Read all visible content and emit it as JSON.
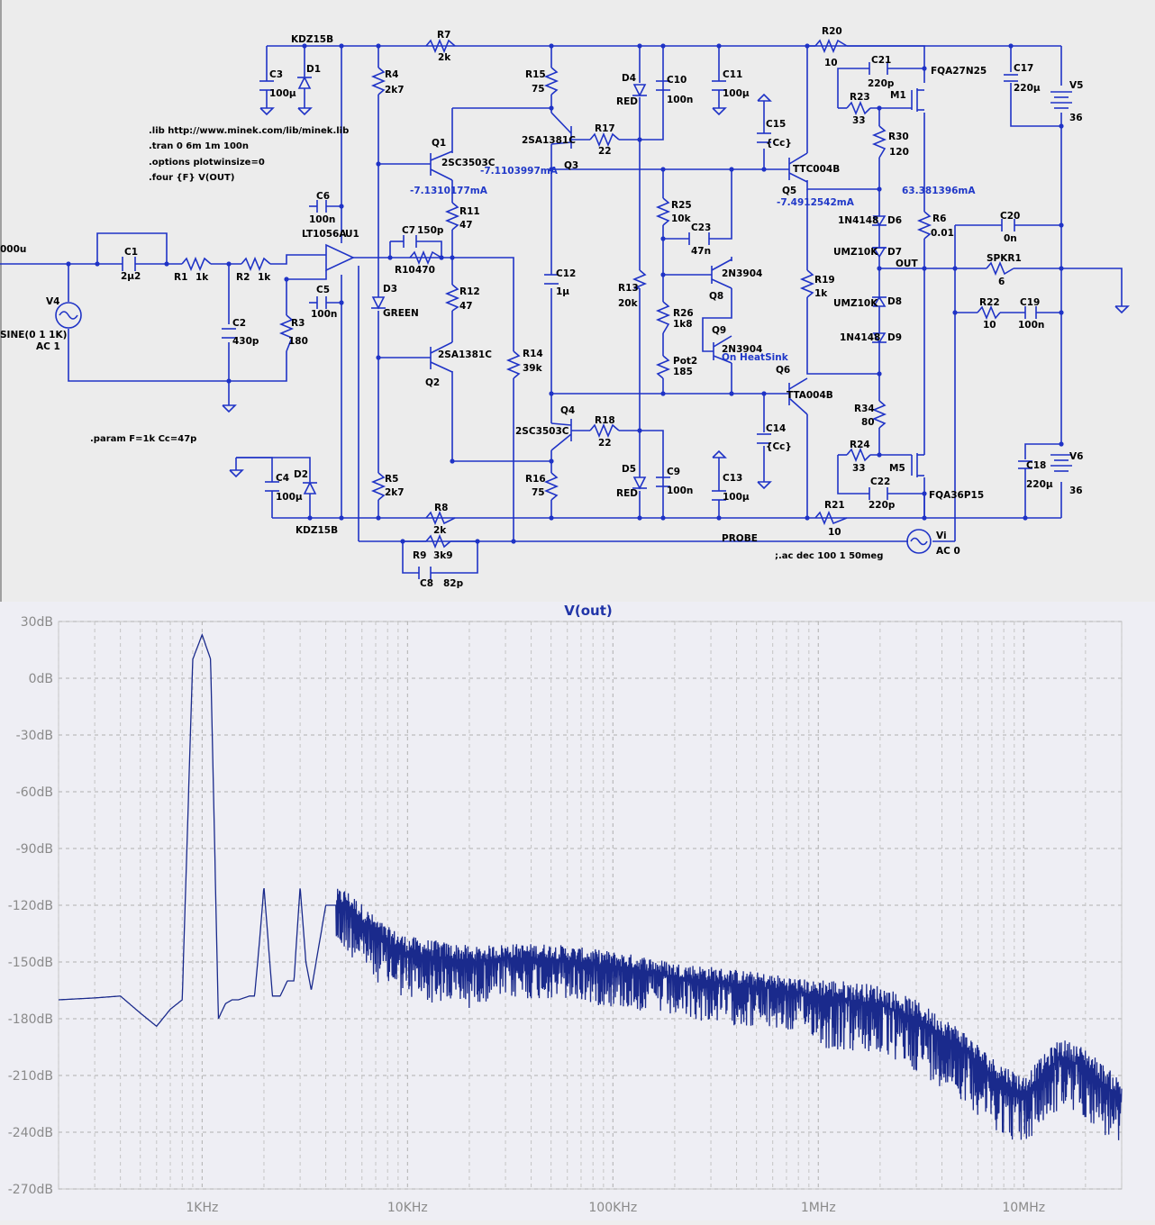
{
  "schematic": {
    "directives": [
      ".lib http://www.minek.com/lib/minek.lib",
      ".tran 0 6m 1m 100n",
      ".options plotwinsize=0",
      ".four {F} V(OUT)",
      ".param F=1k Cc=47p",
      ";.ac dec 100 1 50meg"
    ],
    "labels": {
      "kdz_top": "KDZ15B",
      "kdz_bot": "KDZ15B",
      "r7": "R7",
      "r7v": "2k",
      "r20": "R20",
      "r20v": "10",
      "c3": "C3",
      "c3v": "100µ",
      "d1": "D1",
      "r4": "R4",
      "r4v": "2k7",
      "r15": "R15",
      "r15v": "75",
      "d4": "D4",
      "d4v": "RED",
      "c10": "C10",
      "c10v": "100n",
      "c11": "C11",
      "c11v": "100µ",
      "c21": "C21",
      "c21v": "220p",
      "m1": "M1",
      "m1v": "FQA27N25",
      "c17": "C17",
      "c17v": "220µ",
      "v5": "V5",
      "v5v": "36",
      "r23": "R23",
      "r23v": "33",
      "q1": "Q1",
      "q1v": "2SC3503C",
      "q3": "Q3",
      "q3v": "2SA1381C",
      "r17": "R17",
      "r17v": "22",
      "c15": "C15",
      "c15v": "{Cc}",
      "r30": "R30",
      "r30v": "120",
      "q5": "Q5",
      "q5v": "TTC004B",
      "c6": "C6",
      "c6v": "100n",
      "r11": "R11",
      "r11v": "47",
      "r25": "R25",
      "r25v": "10k",
      "c23": "C23",
      "c23v": "47n",
      "d6": "D6",
      "d6v": "1N4148",
      "r6": "R6",
      "r6v": "0.01",
      "c20": "C20",
      "c20v": "0n",
      "u1": "U1",
      "u1v": "LT1056A",
      "c7": "C7",
      "c7v": "150p",
      "c1": "C1",
      "c1v": "2µ2",
      "r1": "R1",
      "r1v": "1k",
      "r2": "R2",
      "r2v": "1k",
      "r10": "R10",
      "r10v": "470",
      "d7": "D7",
      "d7v": "UMZ10K",
      "out": "OUT",
      "spkr": "SPKR1",
      "spkrv": "6",
      "c12": "C12",
      "c12v": "1µ",
      "q8": "Q8",
      "q8v": "2N3904",
      "r13": "R13",
      "r13v": "20k",
      "r19": "R19",
      "r19v": "1k",
      "d8": "D8",
      "d8v": "UMZ10K",
      "r22": "R22",
      "r22v": "10",
      "c19": "C19",
      "c19v": "100n",
      "v4": "V4",
      "v4v1": "SINE(0 1 1K)",
      "v4v2": "AC 1",
      "c5": "C5",
      "c5v": "100n",
      "r12": "R12",
      "r12v": "47",
      "d3": "D3",
      "d3v": "GREEN",
      "c2": "C2",
      "c2v": "430p",
      "r3": "R3",
      "r3v": "180",
      "r26": "R26",
      "r26v": "1k8",
      "q9": "Q9",
      "q9v": "2N3904",
      "q9note": "On HeatSink",
      "d9": "D9",
      "d9v": "1N4148",
      "q2": "Q2",
      "q2v": "2SA1381C",
      "r14": "R14",
      "r14v": "39k",
      "pot2": "Pot2",
      "pot2v": "185",
      "q6": "Q6",
      "q6v": "TTA004B",
      "q4": "Q4",
      "q4v": "2SC3503C",
      "r18": "R18",
      "r18v": "22",
      "r34": "R34",
      "r34v": "80",
      "c14": "C14",
      "c14v": "{Cc}",
      "r24": "R24",
      "r24v": "33",
      "c4": "C4",
      "c4v": "100µ",
      "d2": "D2",
      "r5": "R5",
      "r5v": "2k7",
      "d5": "D5",
      "d5v": "RED",
      "c9": "C9",
      "c9v": "100n",
      "c13": "C13",
      "c13v": "100µ",
      "m5": "M5",
      "m5v": "FQA36P15",
      "c22": "C22",
      "c22v": "220p",
      "c18": "C18",
      "c18v": "220µ",
      "v6": "V6",
      "v6v": "36",
      "r16": "R16",
      "r16v": "75",
      "r8": "R8",
      "r8v": "2k",
      "r21": "R21",
      "r21v": "10",
      "r9": "R9",
      "r9v": "3k9",
      "probe": "PROBE",
      "vi": "Vi",
      "viv": "AC 0",
      "c8": "C8",
      "c8v": "82p",
      "sig_src": "000u"
    },
    "currents": {
      "q1": "-7.1310177mA",
      "q3": "-7.1103997mA",
      "q5": "-7.4912542mA",
      "m1": "63.381396mA"
    }
  },
  "plot": {
    "title": "V(out)",
    "colors": {
      "trace": "#1a2a8c",
      "grid": "#b0b0b0"
    },
    "chart_data": {
      "type": "line",
      "title": "V(out)",
      "x_scale": "log",
      "xlim": [
        200,
        30000000
      ],
      "ylim": [
        -270,
        30
      ],
      "y_ticks": [
        "30dB",
        "0dB",
        "-30dB",
        "-60dB",
        "-90dB",
        "-120dB",
        "-150dB",
        "-180dB",
        "-210dB",
        "-240dB",
        "-270dB"
      ],
      "x_ticks": [
        "1KHz",
        "10KHz",
        "100KHz",
        "1MHz",
        "10MHz"
      ],
      "grid": true,
      "series": [
        {
          "x": [
            200,
            300,
            400,
            500,
            600,
            700,
            800,
            900,
            1000,
            1100,
            1200,
            1300,
            1400,
            1500,
            1700,
            1800,
            1900,
            2000,
            2100,
            2200,
            2400,
            2600,
            2800,
            3000,
            3200,
            3400,
            4000,
            5000,
            6000,
            7000,
            8000,
            10000,
            15000,
            20000,
            30000,
            50000,
            70000,
            100000,
            150000,
            200000,
            300000,
            500000,
            700000,
            1000000,
            2000000,
            3000000,
            5000000,
            7000000,
            10000000,
            15000000,
            20000000,
            25000000,
            30000000
          ],
          "values": [
            -170,
            -169,
            -168,
            -177,
            -184,
            -175,
            -170,
            10,
            23,
            10,
            -180,
            -172,
            -170,
            -170,
            -168,
            -168,
            -140,
            -110,
            -140,
            -168,
            -168,
            -160,
            -160,
            -110,
            -150,
            -165,
            -120,
            -120,
            -128,
            -135,
            -140,
            -145,
            -148,
            -150,
            -148,
            -148,
            -150,
            -152,
            -155,
            -158,
            -160,
            -163,
            -165,
            -168,
            -172,
            -180,
            -195,
            -210,
            -220,
            -200,
            -205,
            -215,
            -222
          ]
        }
      ]
    }
  }
}
